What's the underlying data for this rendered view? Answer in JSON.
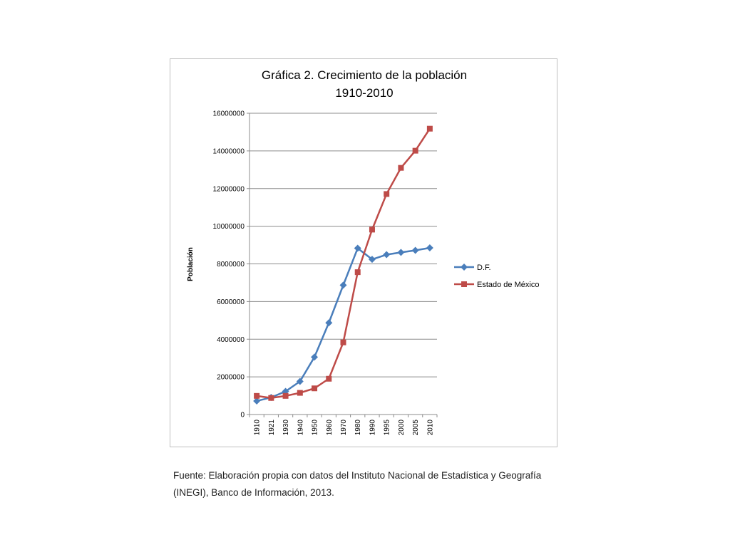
{
  "chart_data": {
    "type": "line",
    "title_line1": "Gráfica 2. Crecimiento de la población",
    "title_line2": "1910-2010",
    "ylabel": "Población",
    "xlabel": "",
    "categories": [
      "1910",
      "1921",
      "1930",
      "1940",
      "1950",
      "1960",
      "1970",
      "1980",
      "1990",
      "1995",
      "2000",
      "2005",
      "2010"
    ],
    "ylim": [
      0,
      16000000
    ],
    "yticks": [
      "0",
      "2000000",
      "4000000",
      "6000000",
      "8000000",
      "10000000",
      "12000000",
      "14000000",
      "16000000"
    ],
    "grid": true,
    "legend_position": "right",
    "series": [
      {
        "name": "D.F.",
        "color": "#4a7ebb",
        "marker": "diamond",
        "values": [
          720000,
          906000,
          1230000,
          1760000,
          3050000,
          4870000,
          6870000,
          8830000,
          8240000,
          8490000,
          8610000,
          8720000,
          8850000
        ]
      },
      {
        "name": "Estado de México",
        "color": "#be4b48",
        "marker": "square",
        "values": [
          990000,
          880000,
          990000,
          1150000,
          1390000,
          1900000,
          3830000,
          7560000,
          9820000,
          11710000,
          13100000,
          14010000,
          15180000
        ]
      }
    ]
  },
  "source_note": {
    "line1": "Fuente: Elaboración propia con datos del Instituto Nacional de Estadística y Geografía",
    "line2": "(INEGI), Banco de Información, 2013."
  }
}
